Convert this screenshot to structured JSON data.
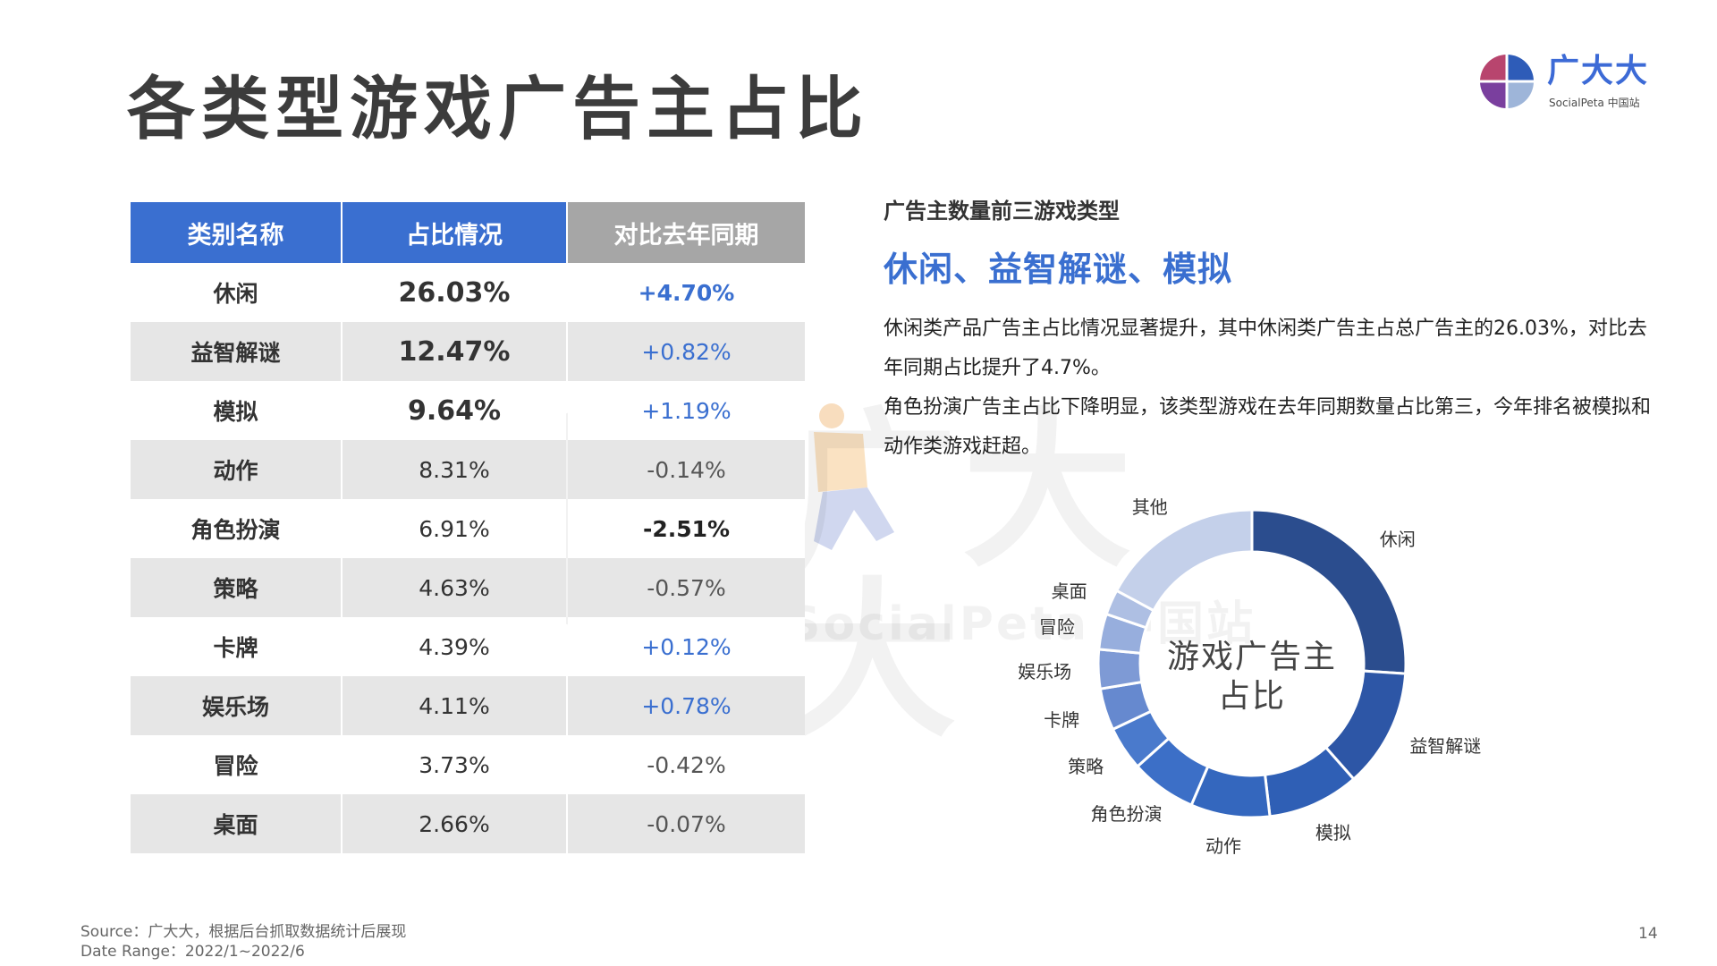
{
  "header": {
    "title": "各类型游戏广告主占比"
  },
  "logo": {
    "name": "广大大",
    "subtitle": "SocialPeta 中国站",
    "colors": [
      "#2e5cb8",
      "#b8456e",
      "#7a3f9e",
      "#9eb5d9"
    ]
  },
  "watermark": {
    "text": "广大大",
    "subtitle": "SocialPeta 中国站"
  },
  "table": {
    "headers": [
      "类别名称",
      "占比情况",
      "对比去年同期"
    ],
    "header_colors": {
      "primary": "#3a6fd0",
      "secondary": "#a6a6a6"
    },
    "rows": [
      {
        "name": "休闲",
        "share": "26.03%",
        "change": "+4.70%"
      },
      {
        "name": "益智解谜",
        "share": "12.47%",
        "change": "+0.82%"
      },
      {
        "name": "模拟",
        "share": "9.64%",
        "change": "+1.19%"
      },
      {
        "name": "动作",
        "share": "8.31%",
        "change": "-0.14%"
      },
      {
        "name": "角色扮演",
        "share": "6.91%",
        "change": "-2.51%"
      },
      {
        "name": "策略",
        "share": "4.63%",
        "change": "-0.57%"
      },
      {
        "name": "卡牌",
        "share": "4.39%",
        "change": "+0.12%"
      },
      {
        "name": "娱乐场",
        "share": "4.11%",
        "change": "+0.78%"
      },
      {
        "name": "冒险",
        "share": "3.73%",
        "change": "-0.42%"
      },
      {
        "name": "桌面",
        "share": "2.66%",
        "change": "-0.07%"
      }
    ]
  },
  "summary": {
    "label": "广告主数量前三游戏类型",
    "highlight": "休闲、益智解谜、模拟",
    "paragraphs": [
      "休闲类产品广告主占比情况显著提升，其中休闲类广告主占总广告主的26.03%，对比去年同期占比提升了4.7%。",
      "角色扮演广告主占比下降明显，该类型游戏在去年同期数量占比第三，今年排名被模拟和动作类游戏赶超。"
    ]
  },
  "chart_data": {
    "type": "pie",
    "donut": true,
    "center_label": "游戏广告主\n占比",
    "categories": [
      "休闲",
      "益智解谜",
      "模拟",
      "动作",
      "角色扮演",
      "策略",
      "卡牌",
      "娱乐场",
      "冒险",
      "桌面",
      "其他"
    ],
    "values": [
      26.03,
      12.47,
      9.64,
      8.31,
      6.91,
      4.63,
      4.39,
      4.11,
      3.73,
      2.66,
      17.12
    ],
    "colors": [
      "#2b4d8e",
      "#2d56a6",
      "#2f5fb5",
      "#3467be",
      "#3c6fc7",
      "#4a7acc",
      "#6689cf",
      "#7e9ad5",
      "#97aedd",
      "#aebfe3",
      "#c4d0ea"
    ]
  },
  "footer": {
    "source": "Source：广大大，根据后台抓取数据统计后展现",
    "date_range": "Date Range：2022/1~2022/6",
    "page_number": "14"
  }
}
